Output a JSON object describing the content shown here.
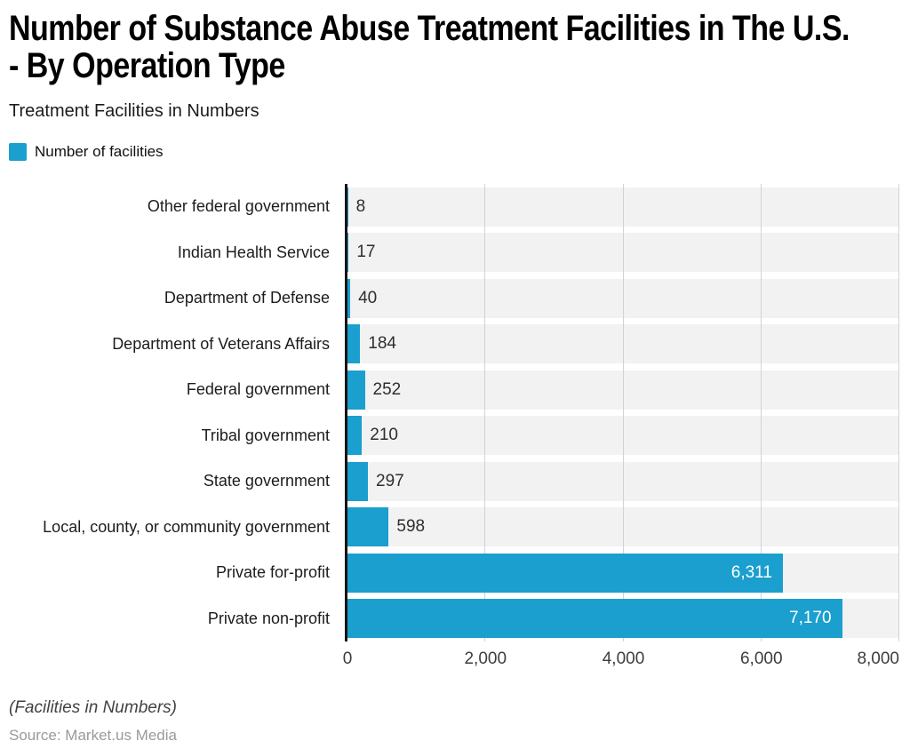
{
  "header": {
    "title_lines": [
      "Number of Substance Abuse Treatment Facilities in The U.S.",
      "- By Operation Type"
    ],
    "subtitle": "Treatment Facilities in Numbers"
  },
  "legend": {
    "label": "Number of facilities",
    "swatch_color": "#1a9fce"
  },
  "chart_data": {
    "type": "bar",
    "orientation": "horizontal",
    "series_name": "Number of facilities",
    "categories": [
      "Other federal government",
      "Indian Health Service",
      "Department of Defense",
      "Department of Veterans Affairs",
      "Federal government",
      "Tribal government",
      "State government",
      "Local, county, or community government",
      "Private for-profit",
      "Private non-profit"
    ],
    "values": [
      8,
      17,
      40,
      184,
      252,
      210,
      297,
      598,
      6311,
      7170
    ],
    "value_labels": [
      "8",
      "17",
      "40",
      "184",
      "252",
      "210",
      "297",
      "598",
      "6,311",
      "7,170"
    ],
    "xlim": [
      0,
      8000
    ],
    "x_tick_values": [
      0,
      2000,
      4000,
      6000,
      8000
    ],
    "x_tick_labels": [
      "0",
      "2,000",
      "4,000",
      "6,000",
      "8,000"
    ],
    "grid": true,
    "legend_position": "top-left",
    "bar_color": "#1a9fce",
    "band_color": "#f2f2f2",
    "grid_color": "#ccd4d8",
    "axis_line_color": "#151515"
  },
  "footer": {
    "note": "(Facilities in Numbers)",
    "source": "Source: Market.us Media"
  }
}
